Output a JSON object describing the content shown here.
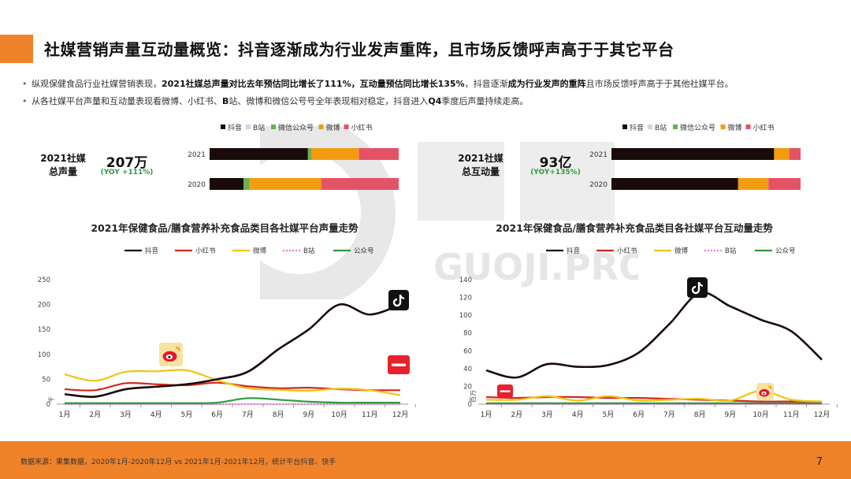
{
  "page": {
    "title": "社媒营销声量互动量概览：抖音逐渐成为行业发声重阵，且市场反馈呼声高于于其它平台",
    "bullets": [
      {
        "p1": "纵观保健食品行业社媒营销表现，",
        "b1": "2021社媒总声量对比去年预估同比增长了111%，互动量预估同比增长135%",
        "p2": "，抖音逐渐",
        "b2": "成为行业发声的重阵",
        "p3": "且市场反馈呼声高于于其他社媒平台。"
      },
      {
        "p1": "从各社媒平台声量和互动量表现看微博、小红书、",
        "b1": "B",
        "p2": "站、微博和微信公号号全年表现相对稳定，抖音进入",
        "b2": "Q4",
        "p3": "季度后声量持续走高。"
      }
    ],
    "footer": "数据来源：果集数据，2020年1月-2020年12月 vs 2021年1月-2021年12月，统计平台抖音、快手",
    "page_number": "7",
    "watermark_text": "GUOJI.PRO"
  },
  "kpis": {
    "voice": {
      "label_line1": "2021社媒",
      "label_line2": "总声量",
      "value": "207万",
      "yoy": "(YOY +111%)"
    },
    "interaction": {
      "label_line1": "2021社媒",
      "label_line2": "总互动量",
      "value": "93亿",
      "yoy": "(YOY+135%)"
    }
  },
  "colors": {
    "accent": "#f0822a",
    "douyin": "#1a0a0a",
    "bilibili": "#c9d6e8",
    "wechat": "#6ab04c",
    "weibo": "#f39c12",
    "xiaohongshu": "#e45365",
    "weibo_line": "#f1c40f",
    "bilibili_line": "#e77fe0",
    "wechat_line": "#2e9a3e",
    "xhs_line": "#d6261c"
  },
  "chart_data": [
    {
      "type": "bar",
      "stacked": "percent",
      "orientation": "horizontal",
      "categories": [
        "2021",
        "2020"
      ],
      "series": [
        {
          "name": "抖音",
          "values": [
            52,
            18
          ]
        },
        {
          "name": "B站",
          "values": [
            0,
            0
          ]
        },
        {
          "name": "微信公众号",
          "values": [
            2,
            3
          ]
        },
        {
          "name": "微博",
          "values": [
            25,
            38
          ]
        },
        {
          "name": "小红书",
          "values": [
            21,
            41
          ]
        }
      ],
      "legend": "top"
    },
    {
      "type": "bar",
      "stacked": "percent",
      "orientation": "horizontal",
      "categories": [
        "2021",
        "2020"
      ],
      "series": [
        {
          "name": "抖音",
          "values": [
            86,
            67
          ]
        },
        {
          "name": "B站",
          "values": [
            0,
            0
          ]
        },
        {
          "name": "微信公众号",
          "values": [
            0,
            0
          ]
        },
        {
          "name": "微博",
          "values": [
            8,
            16
          ]
        },
        {
          "name": "小红书",
          "values": [
            6,
            17
          ]
        }
      ],
      "legend": "top"
    },
    {
      "type": "line",
      "title": "2021年保健食品/膳食营养补充食品类目各社媒平台声量走势",
      "ylabel": "千",
      "categories": [
        "1月",
        "2月",
        "3月",
        "4月",
        "5月",
        "6月",
        "7月",
        "8月",
        "9月",
        "10月",
        "11月",
        "12月"
      ],
      "ylim": [
        0,
        250
      ],
      "yticks": [
        0,
        50,
        100,
        150,
        200,
        250
      ],
      "series": [
        {
          "name": "抖音",
          "values": [
            20,
            15,
            30,
            35,
            40,
            50,
            65,
            110,
            150,
            200,
            180,
            200
          ]
        },
        {
          "name": "小红书",
          "values": [
            30,
            28,
            42,
            40,
            38,
            43,
            36,
            32,
            33,
            30,
            28,
            28
          ]
        },
        {
          "name": "微博",
          "values": [
            60,
            47,
            65,
            66,
            68,
            48,
            32,
            29,
            27,
            31,
            28,
            18
          ]
        },
        {
          "name": "B站",
          "values": [
            0,
            0,
            0,
            0,
            0,
            0,
            0,
            0,
            0,
            0,
            0,
            0
          ]
        },
        {
          "name": "公众号",
          "values": [
            2,
            2,
            2,
            2,
            2,
            3,
            12,
            9,
            5,
            3,
            3,
            3
          ]
        }
      ],
      "legend": "top"
    },
    {
      "type": "line",
      "title": "2021年保健食品/膳食营养补充食品类目各社媒平台互动量走势",
      "ylabel": "百万",
      "categories": [
        "1月",
        "2月",
        "3月",
        "4月",
        "5月",
        "6月",
        "7月",
        "8月",
        "9月",
        "10月",
        "11月",
        "12月"
      ],
      "ylim": [
        0,
        140
      ],
      "yticks": [
        0,
        20,
        40,
        60,
        80,
        100,
        120,
        140
      ],
      "series": [
        {
          "name": "抖音",
          "values": [
            38,
            30,
            45,
            42,
            44,
            58,
            90,
            125,
            110,
            95,
            82,
            50
          ]
        },
        {
          "name": "小红书",
          "values": [
            8,
            7,
            8,
            8,
            7,
            7,
            6,
            5,
            4,
            3,
            3,
            3
          ]
        },
        {
          "name": "微博",
          "values": [
            5,
            5,
            9,
            4,
            9,
            4,
            5,
            6,
            4,
            15,
            5,
            3
          ]
        },
        {
          "name": "B站",
          "values": [
            0,
            0,
            0,
            0,
            0,
            0,
            0,
            0,
            0,
            0,
            0,
            0
          ]
        },
        {
          "name": "公众号",
          "values": [
            1,
            1,
            1,
            1,
            1,
            1,
            1,
            1,
            1,
            1,
            1,
            1
          ]
        }
      ],
      "legend": "top"
    }
  ]
}
